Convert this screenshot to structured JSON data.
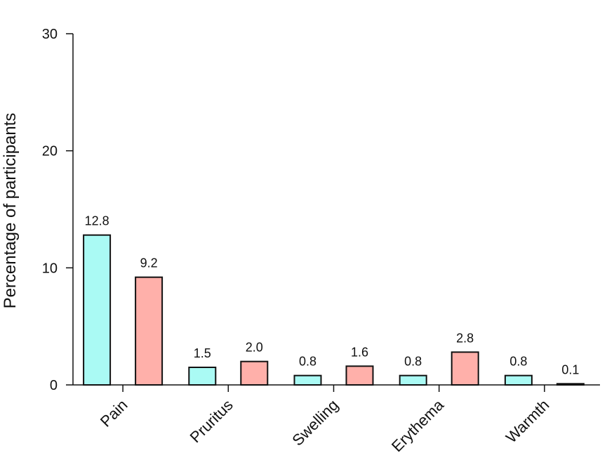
{
  "chart_data": {
    "type": "bar",
    "title": "",
    "xlabel": "",
    "ylabel": "Percentage of participants",
    "ylim": [
      0,
      30
    ],
    "yticks": [
      0,
      10,
      20,
      30
    ],
    "categories": [
      "Pain",
      "Pruritus",
      "Swelling",
      "Erythema",
      "Warmth"
    ],
    "series": [
      {
        "values": [
          12.8,
          1.5,
          0.8,
          0.8,
          0.8
        ],
        "labels": [
          "12.8",
          "1.5",
          "0.8",
          "0.8",
          "0.8"
        ],
        "color": "#aafaf4"
      },
      {
        "values": [
          9.2,
          2.0,
          1.6,
          2.8,
          0.1
        ],
        "labels": [
          "9.2",
          "2.0",
          "1.6",
          "2.8",
          "0.1"
        ],
        "color": "#ffb0aa"
      }
    ],
    "grid": false,
    "legend": "none"
  }
}
